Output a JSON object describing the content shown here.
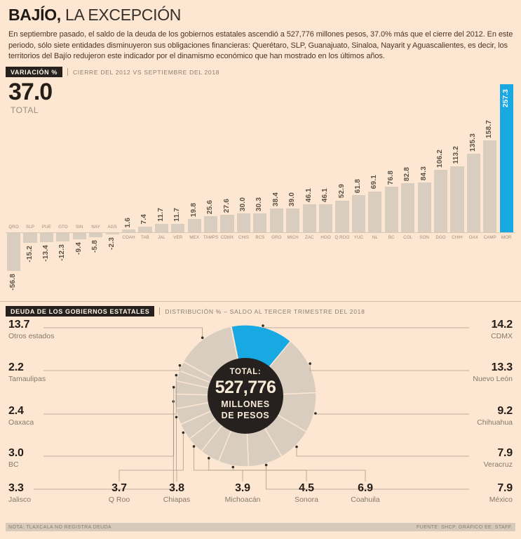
{
  "header": {
    "title_bold": "BAJÍO,",
    "title_rest": " LA EXCEPCIÓN",
    "intro": "En septiembre pasado, el saldo de la deuda de los gobiernos estatales ascendió a 527,776 millones pesos, 37.0% más que el cierre del 2012. En este periodo, sólo siete entidades disminuyeron sus obligaciones financieras: Querétaro, SLP, Guanajuato, Sinaloa, Nayarit y Aguascalientes, es decir, los territorios del Bajío redujeron este indicador por el dinamismo económico que han mostrado en los últimos años."
  },
  "bar_section": {
    "badge": "VARIACIÓN %",
    "caption": "CIERRE DEL 2012 VS SEPTIEMBRE DEL 2018",
    "total_value": "37.0",
    "total_label": "TOTAL"
  },
  "pie_section": {
    "badge": "DEUDA DE LOS GOBIERNOS ESTATALES",
    "caption": "DISTRIBUCIÓN % – SALDO AL TERCER TRIMESTRE DEL 2018",
    "center": {
      "line1": "TOTAL:",
      "line2": "527,776",
      "line3": "MILLONES",
      "line4": "DE PESOS"
    }
  },
  "footer": {
    "note": "NOTA: TLAXCALA NO REGISTRA DEUDA",
    "source": "FUENTE: SHCP. GRÁFICO EE: STAFF."
  },
  "colors": {
    "background": "#fde7d2",
    "bar_fill": "#d9cdc0",
    "accent_blue": "#18a8e2",
    "dark_center": "#26211f",
    "text_dark": "#231f20",
    "text_muted": "#8b7e6d",
    "leader_line": "#a99a86"
  },
  "chart_data": [
    {
      "type": "bar",
      "title": "VARIACIÓN %",
      "subtitle": "CIERRE DEL 2012 VS SEPTIEMBRE DEL 2018",
      "total": 37.0,
      "categories": [
        "QRO",
        "SLP",
        "PUE",
        "GTO",
        "SIN",
        "NAY",
        "AGS",
        "COAH",
        "TAB",
        "JAL",
        "VER",
        "MEX",
        "TAMPS",
        "CDMX",
        "CHIS",
        "BCS",
        "GRO",
        "MICH",
        "ZAC",
        "HGO",
        "Q.ROO",
        "YUC",
        "NL",
        "BC",
        "COL",
        "SON",
        "DGO",
        "CHIH",
        "OAX",
        "CAMP",
        "MOR"
      ],
      "values": [
        -56.8,
        -15.2,
        -13.4,
        -12.3,
        -9.4,
        -5.8,
        -2.3,
        1.6,
        7.4,
        11.7,
        11.7,
        19.8,
        25.6,
        27.6,
        30.0,
        30.3,
        38.4,
        39.0,
        46.1,
        46.1,
        52.9,
        61.8,
        69.1,
        76.8,
        82.8,
        84.3,
        106.2,
        113.2,
        135.3,
        158.7,
        257.3
      ],
      "highlight_category": "MOR",
      "ylabel": "Variación %",
      "grid": false
    },
    {
      "type": "pie",
      "title": "DEUDA DE LOS GOBIERNOS ESTATALES",
      "subtitle": "DISTRIBUCIÓN % – SALDO AL TERCER TRIMESTRE DEL 2018",
      "center_total": "527,776 MILLONES DE PESOS",
      "highlight_slice": "CDMX",
      "start_angle_deg": -11.5,
      "direction": "clockwise",
      "slices": [
        {
          "label": "CDMX",
          "value": 14.2
        },
        {
          "label": "Nuevo León",
          "value": 13.3
        },
        {
          "label": "Chihuahua",
          "value": 9.2
        },
        {
          "label": "Veracruz",
          "value": 7.9
        },
        {
          "label": "México",
          "value": 7.9
        },
        {
          "label": "Coahuila",
          "value": 6.9
        },
        {
          "label": "Sonora",
          "value": 4.5
        },
        {
          "label": "Michoacán",
          "value": 3.9
        },
        {
          "label": "Chiapas",
          "value": 3.8
        },
        {
          "label": "Q Roo",
          "value": 3.7
        },
        {
          "label": "Jalisco",
          "value": 3.3
        },
        {
          "label": "BC",
          "value": 3.0
        },
        {
          "label": "Oaxaca",
          "value": 2.4
        },
        {
          "label": "Tamaulipas",
          "value": 2.2
        },
        {
          "label": "Otros estados",
          "value": 13.7
        }
      ]
    }
  ]
}
